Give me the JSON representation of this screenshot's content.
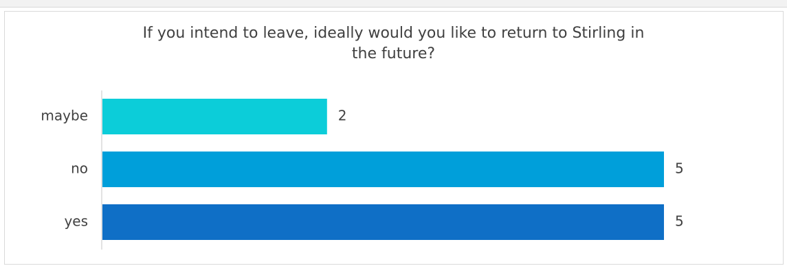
{
  "chart_data": {
    "type": "bar",
    "orientation": "horizontal",
    "title_lines": [
      "If you intend to leave, ideally would you like to return to Stirling in",
      "the future?"
    ],
    "categories": [
      "maybe",
      "no",
      "yes"
    ],
    "values": [
      2,
      5,
      5
    ],
    "colors": [
      "#0ccdd9",
      "#009fda",
      "#0f6fc6"
    ],
    "xlim": [
      0,
      5
    ],
    "grid": false,
    "legend": "none",
    "data_labels": true
  }
}
